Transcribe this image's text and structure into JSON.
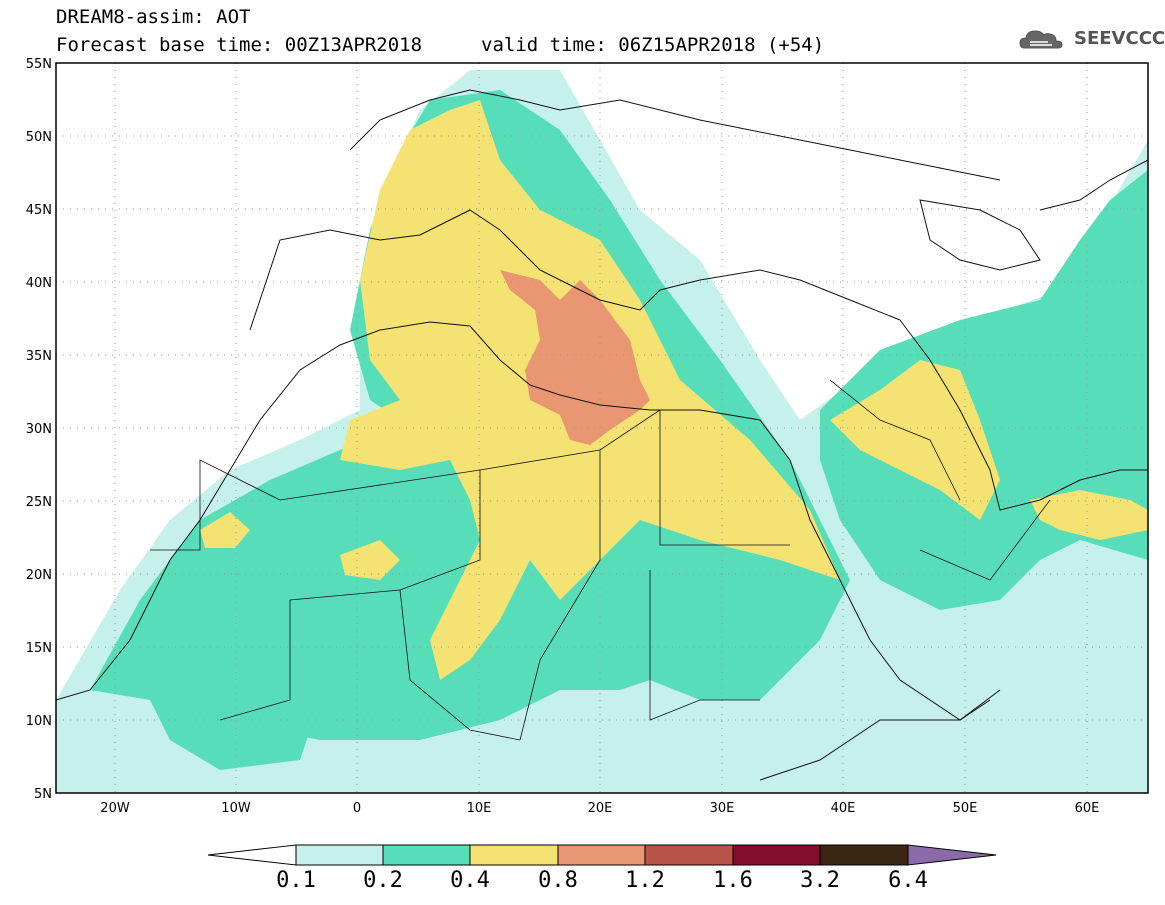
{
  "title": {
    "line1": "DREAM8-assim: AOT",
    "line2": "Forecast base time: 00Z13APR2018",
    "valid": "valid time: 06Z15APR2018 (+54)"
  },
  "logo": {
    "text": "SEEVCCC",
    "icon": "cloud-icon"
  },
  "map": {
    "lat_range": [
      5,
      55
    ],
    "lon_range": [
      -25,
      65
    ],
    "lat_labels": [
      "55N",
      "50N",
      "45N",
      "40N",
      "35N",
      "30N",
      "25N",
      "20N",
      "15N",
      "10N",
      "5N"
    ],
    "lon_labels": [
      "20W",
      "10W",
      "0",
      "10E",
      "20E",
      "30E",
      "40E",
      "50E",
      "60E"
    ],
    "grid": "dotted"
  },
  "colorbar": {
    "labels": [
      "0.1",
      "0.2",
      "0.4",
      "0.8",
      "1.2",
      "1.6",
      "3.2",
      "6.4"
    ],
    "colors": [
      "#c6f1ea",
      "#57deb9",
      "#f4e373",
      "#e99772",
      "#b9544a",
      "#820e2b",
      "#3b2614",
      "#8b6aa9"
    ],
    "extend": "both"
  }
}
